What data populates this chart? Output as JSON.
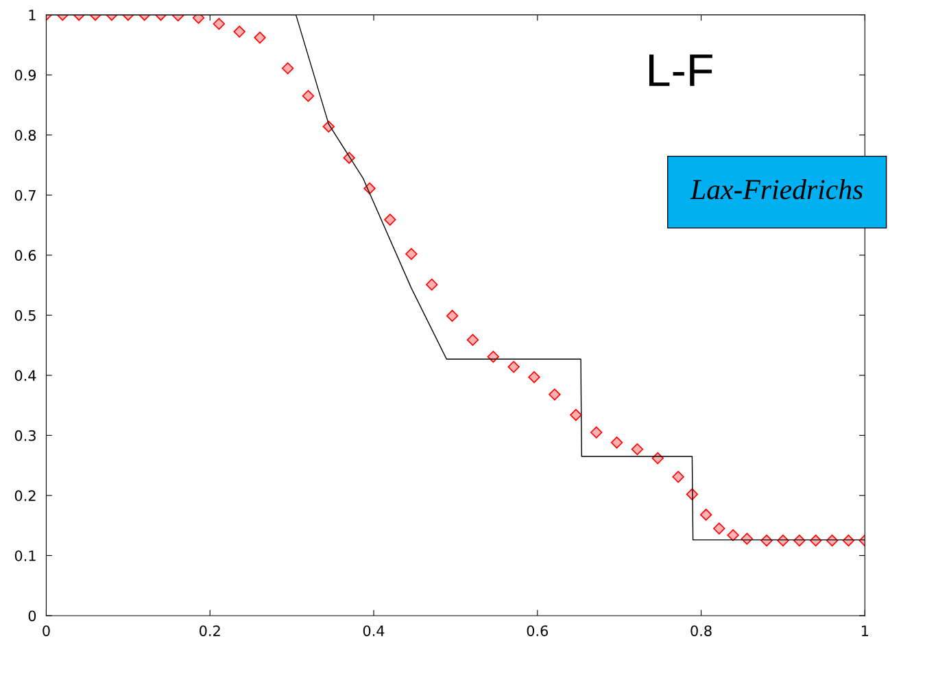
{
  "chart_data": {
    "type": "line",
    "series": [
      {
        "color": "#000000",
        "marker": "none",
        "line_style": "solid",
        "x": [
          0,
          0.305,
          0.345,
          0.387,
          0.446,
          0.489,
          0.653,
          0.654,
          0.789,
          0.79,
          1
        ],
        "values": [
          1,
          1,
          0.818,
          0.728,
          0.545,
          0.427,
          0.427,
          0.265,
          0.265,
          0.126,
          0.126
        ]
      },
      {
        "type": "scatter",
        "color": "#ff0000",
        "marker": "diamond",
        "x": [
          0,
          0.02,
          0.04,
          0.06,
          0.08,
          0.1,
          0.12,
          0.14,
          0.161,
          0.186,
          0.211,
          0.236,
          0.261,
          0.295,
          0.32,
          0.345,
          0.37,
          0.395,
          0.42,
          0.446,
          0.471,
          0.496,
          0.521,
          0.546,
          0.571,
          0.596,
          0.621,
          0.647,
          0.672,
          0.697,
          0.722,
          0.747,
          0.772,
          0.789,
          0.806,
          0.822,
          0.839,
          0.856,
          0.88,
          0.9,
          0.92,
          0.94,
          0.96,
          0.98,
          1
        ],
        "values": [
          1,
          1,
          1,
          1,
          1,
          1,
          1,
          1,
          0.999,
          0.995,
          0.985,
          0.972,
          0.962,
          0.911,
          0.865,
          0.814,
          0.762,
          0.711,
          0.659,
          0.602,
          0.551,
          0.499,
          0.459,
          0.431,
          0.414,
          0.397,
          0.368,
          0.334,
          0.305,
          0.288,
          0.277,
          0.262,
          0.231,
          0.202,
          0.168,
          0.145,
          0.134,
          0.128,
          0.125,
          0.125,
          0.125,
          0.125,
          0.125,
          0.125,
          0.125
        ]
      }
    ],
    "xlim": [
      0,
      1
    ],
    "ylim": [
      0,
      1
    ],
    "xticks": [
      0,
      0.2,
      0.4,
      0.6,
      0.8,
      1
    ],
    "yticks": [
      0,
      0.1,
      0.2,
      0.3,
      0.4,
      0.5,
      0.6,
      0.7,
      0.8,
      0.9,
      1
    ],
    "grid": false,
    "legend": false,
    "annotations": [
      "L-F",
      "Lax-Friedrichs"
    ]
  }
}
